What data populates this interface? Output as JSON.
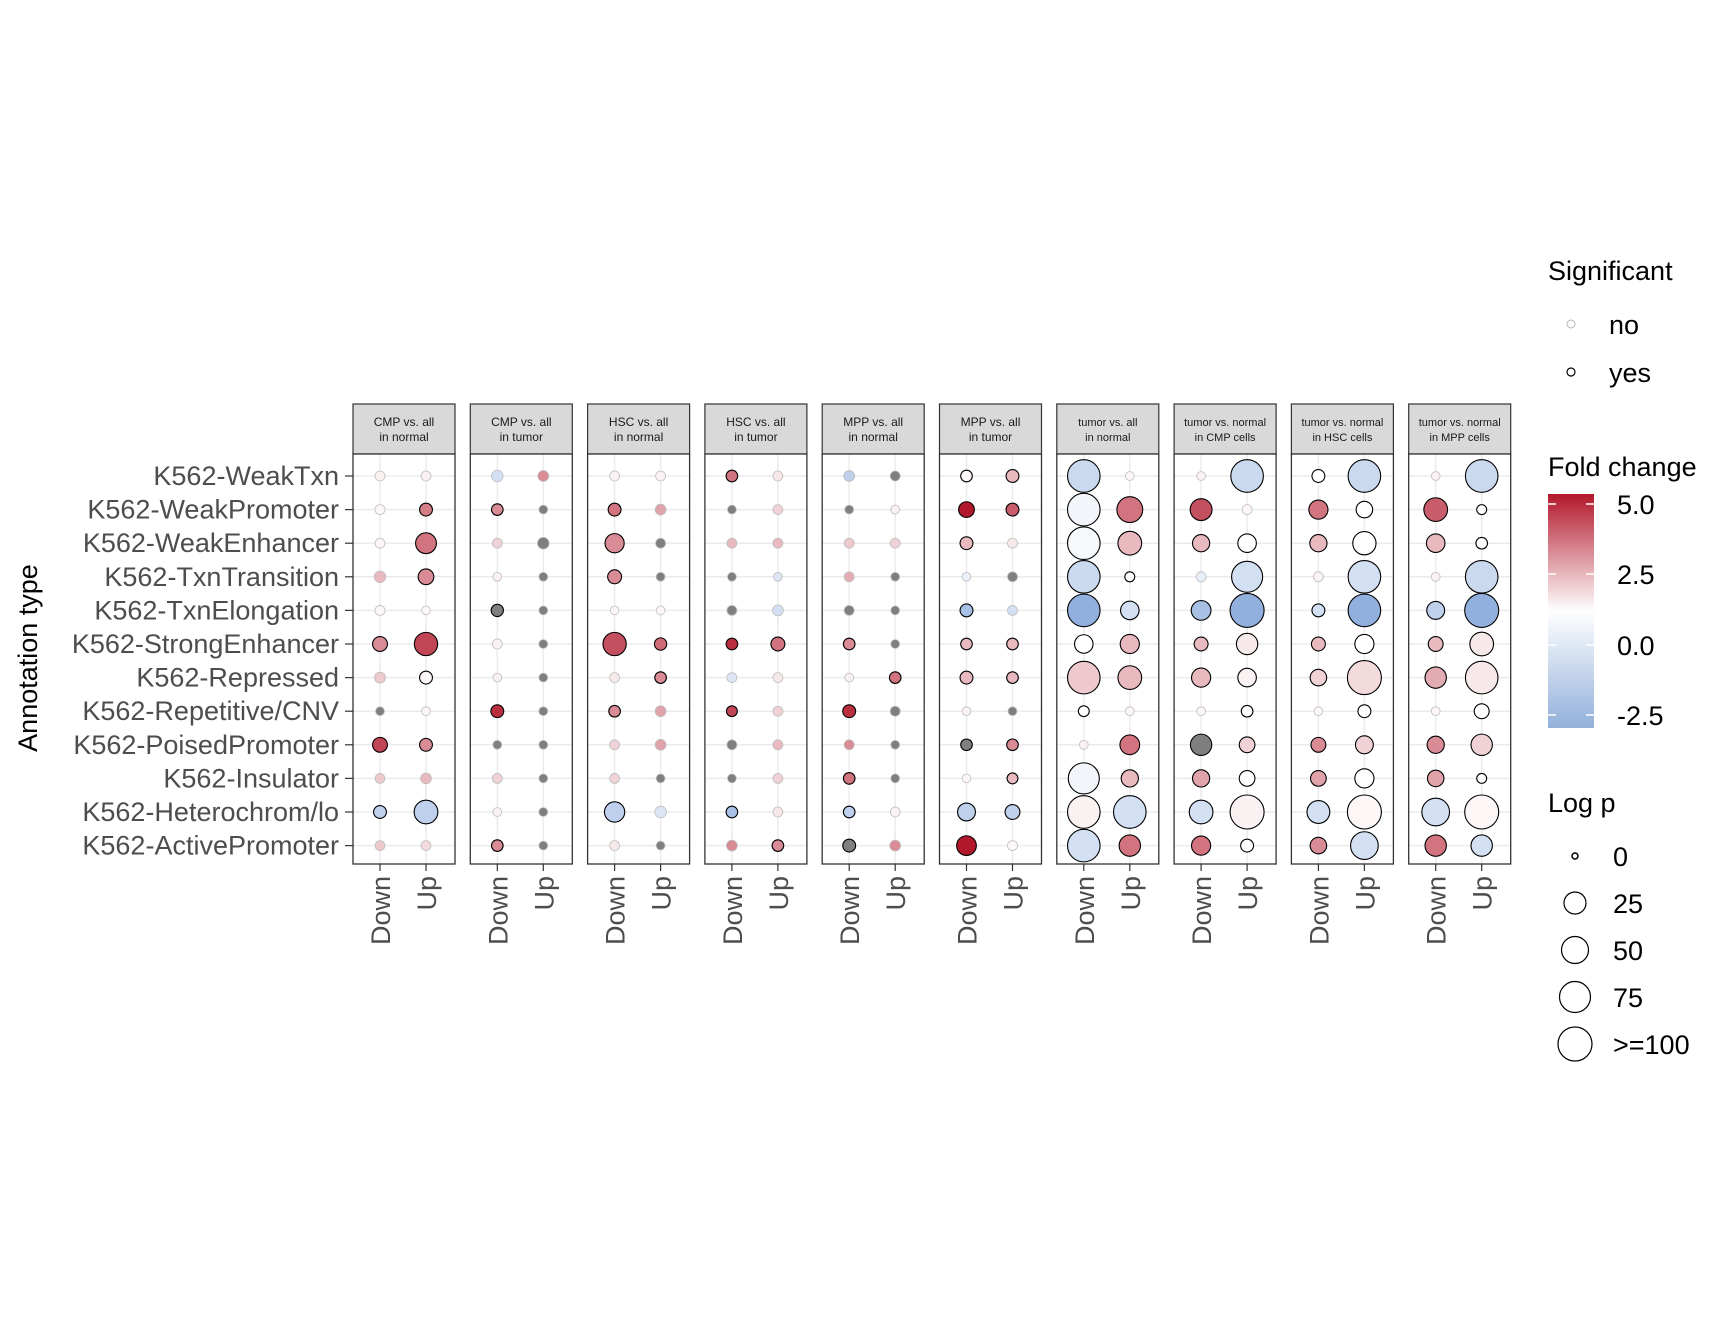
{
  "chart_data": {
    "type": "dot-matrix",
    "ylabel": "Annotation type",
    "rows": [
      "K562-WeakTxn",
      "K562-WeakPromoter",
      "K562-WeakEnhancer",
      "K562-TxnTransition",
      "K562-TxnElongation",
      "K562-StrongEnhancer",
      "K562-Repressed",
      "K562-Repetitive/CNV",
      "K562-PoisedPromoter",
      "K562-Insulator",
      "K562-Heterochrom/lo",
      "K562-ActivePromoter"
    ],
    "columns": [
      "Down",
      "Up"
    ],
    "panels": [
      {
        "title": [
          "CMP vs. all",
          "in normal"
        ],
        "title_size": 12,
        "down": {
          "fc": [
            0.3,
            0.2,
            0.2,
            1.5,
            0.2,
            2.5,
            1.2,
            "na",
            4,
            1.2,
            -1.5,
            1.2
          ],
          "logp": [
            2,
            2,
            2,
            4,
            2,
            10,
            3,
            1,
            10,
            2,
            6,
            2
          ],
          "sig": [
            0,
            0,
            0,
            0,
            0,
            1,
            0,
            0,
            1,
            0,
            1,
            0
          ]
        },
        "up": {
          "fc": [
            0.3,
            2.8,
            3,
            2.5,
            0.2,
            4,
            0.2,
            0.2,
            2.5,
            1.5,
            -1.5,
            0.8
          ],
          "logp": [
            2,
            6,
            28,
            12,
            1,
            38,
            6,
            1,
            6,
            3,
            40,
            2
          ],
          "sig": [
            0,
            1,
            1,
            1,
            0,
            1,
            1,
            0,
            1,
            0,
            1,
            0
          ]
        }
      },
      {
        "title": [
          "CMP vs. all",
          "in tumor"
        ],
        "title_size": 12,
        "down": {
          "fc": [
            -1,
            2.5,
            1,
            0.3,
            "na",
            0.3,
            0.3,
            4.5,
            "na",
            1,
            0.3,
            2.5
          ],
          "logp": [
            4,
            4,
            2,
            1,
            5,
            2,
            1,
            6,
            1,
            2,
            1,
            4
          ],
          "sig": [
            0,
            1,
            0,
            0,
            1,
            0,
            0,
            1,
            0,
            0,
            0,
            1
          ]
        },
        "up": {
          "fc": [
            2.5,
            "na",
            "na",
            "na",
            "na",
            "na",
            "na",
            "na",
            "na",
            "na",
            "na",
            "na"
          ],
          "logp": [
            3,
            1,
            4,
            1,
            1,
            1,
            1,
            1,
            1,
            1,
            1,
            1
          ],
          "sig": [
            0,
            0,
            0,
            0,
            0,
            0,
            0,
            0,
            0,
            0,
            0,
            0
          ]
        }
      },
      {
        "title": [
          "HSC vs. all",
          "in normal"
        ],
        "title_size": 12,
        "down": {
          "fc": [
            0.3,
            3,
            2.5,
            2.5,
            0.2,
            3.8,
            0.5,
            2.5,
            1,
            1,
            -1.5,
            0.5
          ],
          "logp": [
            2,
            6,
            22,
            8,
            1,
            38,
            2,
            4,
            2,
            2,
            26,
            2
          ],
          "sig": [
            0,
            1,
            1,
            1,
            0,
            1,
            0,
            1,
            0,
            0,
            1,
            0
          ]
        },
        "up": {
          "fc": [
            0.3,
            2,
            "na",
            "na",
            0.2,
            3.2,
            2.5,
            2,
            2,
            "na",
            -0.8,
            "na"
          ],
          "logp": [
            2,
            3,
            2,
            1,
            1,
            5,
            4,
            3,
            3,
            1,
            4,
            1
          ],
          "sig": [
            0,
            0,
            0,
            0,
            0,
            1,
            1,
            0,
            0,
            0,
            0,
            0
          ]
        }
      },
      {
        "title": [
          "HSC vs. all",
          "in tumor"
        ],
        "title_size": 12,
        "down": {
          "fc": [
            3,
            "na",
            1.5,
            "na",
            "na",
            4.5,
            -0.8,
            4,
            "na",
            "na",
            -2,
            2.5
          ],
          "logp": [
            4,
            1,
            2,
            1,
            2,
            4,
            2,
            3,
            2,
            1,
            4,
            3
          ],
          "sig": [
            1,
            0,
            0,
            0,
            0,
            1,
            0,
            1,
            0,
            0,
            1,
            0
          ]
        },
        "up": {
          "fc": [
            0.5,
            1,
            1.5,
            -0.8,
            -1,
            3,
            0.5,
            1,
            1.5,
            1,
            0.5,
            2.5
          ],
          "logp": [
            2,
            2,
            2,
            1,
            3,
            8,
            2,
            2,
            2,
            2,
            2,
            4
          ],
          "sig": [
            0,
            0,
            0,
            0,
            0,
            1,
            0,
            0,
            0,
            0,
            0,
            1
          ]
        }
      },
      {
        "title": [
          "MPP vs. all",
          "in normal"
        ],
        "title_size": 12,
        "down": {
          "fc": [
            -1.5,
            "na",
            1.2,
            1.8,
            "na",
            2.5,
            0.3,
            4.5,
            2.5,
            3,
            -1.5,
            "na"
          ],
          "logp": [
            3,
            1,
            2,
            2,
            2,
            4,
            1,
            6,
            2,
            4,
            4,
            6
          ],
          "sig": [
            0,
            0,
            0,
            0,
            0,
            1,
            0,
            1,
            0,
            1,
            1,
            1
          ]
        },
        "up": {
          "fc": [
            "na",
            0.3,
            1,
            "na",
            "na",
            "na",
            3,
            "na",
            "na",
            "na",
            0.3,
            2.5
          ],
          "logp": [
            2,
            1,
            2,
            1,
            1,
            1,
            4,
            2,
            1,
            1,
            2,
            3
          ],
          "sig": [
            0,
            0,
            0,
            0,
            0,
            0,
            1,
            0,
            0,
            0,
            0,
            0
          ]
        }
      },
      {
        "title": [
          "MPP vs. all",
          "in tumor"
        ],
        "title_size": 12,
        "down": {
          "fc": [
            0.2,
            5,
            1.5,
            -0.5,
            -2,
            1.5,
            1.5,
            0.3,
            "na",
            0.2,
            -1.5,
            5
          ],
          "logp": [
            4,
            12,
            6,
            1,
            6,
            4,
            6,
            1,
            4,
            1,
            18,
            24
          ],
          "sig": [
            1,
            1,
            1,
            0,
            1,
            1,
            1,
            0,
            1,
            0,
            1,
            1
          ]
        },
        "up": {
          "fc": [
            1.5,
            3.5,
            0.5,
            "na",
            -1,
            1.5,
            1.5,
            "na",
            2.5,
            1.5,
            -1.5,
            0.2
          ],
          "logp": [
            6,
            6,
            2,
            2,
            2,
            4,
            4,
            1,
            4,
            3,
            10,
            2
          ],
          "sig": [
            1,
            1,
            0,
            0,
            0,
            1,
            1,
            0,
            1,
            1,
            1,
            0
          ]
        }
      },
      {
        "title": [
          "tumor vs. all",
          "in normal"
        ],
        "title_size": 11,
        "down": {
          "fc": [
            -1.2,
            -0.3,
            -0.2,
            -1.2,
            -2.5,
            0,
            1.2,
            0,
            0.3,
            -0.3,
            0.3,
            -1
          ],
          "logp": [
            90,
            90,
            90,
            90,
            90,
            20,
            90,
            3,
            1,
            80,
            90,
            90
          ],
          "sig": [
            1,
            1,
            1,
            1,
            1,
            1,
            1,
            1,
            0,
            1,
            1,
            1
          ]
        },
        "up": {
          "fc": [
            0.2,
            3,
            1.5,
            0,
            -1,
            1.5,
            1.5,
            0.2,
            3,
            1.5,
            -1,
            3
          ],
          "logp": [
            1,
            50,
            40,
            2,
            20,
            22,
            40,
            1,
            24,
            16,
            90,
            30
          ],
          "sig": [
            0,
            1,
            1,
            1,
            1,
            1,
            1,
            0,
            1,
            1,
            1,
            1
          ]
        }
      },
      {
        "title": [
          "tumor vs. normal",
          "in CMP cells"
        ],
        "title_size": 11,
        "down": {
          "fc": [
            0.3,
            3.8,
            1.5,
            -0.5,
            -2,
            1.5,
            1.5,
            0.2,
            "na",
            2,
            -1,
            3
          ],
          "logp": [
            1,
            32,
            16,
            2,
            24,
            8,
            22,
            1,
            30,
            16,
            40,
            22
          ],
          "sig": [
            0,
            1,
            1,
            0,
            1,
            1,
            1,
            0,
            1,
            1,
            1,
            1
          ]
        },
        "up": {
          "fc": [
            -1.2,
            0.2,
            0,
            -1,
            -2.5,
            0.5,
            0.3,
            0,
            1,
            0,
            0.3,
            0
          ],
          "logp": [
            90,
            2,
            20,
            80,
            100,
            30,
            20,
            4,
            12,
            12,
            100,
            6
          ],
          "sig": [
            1,
            0,
            1,
            1,
            1,
            1,
            1,
            1,
            1,
            1,
            1,
            1
          ]
        }
      },
      {
        "title": [
          "tumor vs. normal",
          "in HSC cells"
        ],
        "title_size": 11,
        "down": {
          "fc": [
            0,
            3,
            1.5,
            0.3,
            -1,
            1.5,
            1,
            0.2,
            2.5,
            2,
            -1,
            2.5
          ],
          "logp": [
            6,
            22,
            16,
            2,
            6,
            8,
            14,
            1,
            10,
            12,
            36,
            14
          ],
          "sig": [
            1,
            1,
            1,
            0,
            1,
            1,
            1,
            0,
            1,
            1,
            1,
            1
          ]
        },
        "up": {
          "fc": [
            -1.2,
            0,
            0,
            -1,
            -2.5,
            0,
            0.8,
            0,
            1,
            0,
            0.2,
            -1
          ],
          "logp": [
            90,
            14,
            38,
            90,
            90,
            22,
            100,
            6,
            18,
            22,
            100,
            60
          ],
          "sig": [
            1,
            1,
            1,
            1,
            1,
            1,
            1,
            1,
            1,
            1,
            1,
            1
          ]
        }
      },
      {
        "title": [
          "tumor vs. normal",
          "in MPP cells"
        ],
        "title_size": 11,
        "down": {
          "fc": [
            0.3,
            3.5,
            1.5,
            0.3,
            -1.5,
            1.5,
            1.8,
            0.2,
            2.5,
            2,
            -1,
            3
          ],
          "logp": [
            1,
            40,
            20,
            1,
            18,
            10,
            30,
            1,
            16,
            14,
            60,
            30
          ],
          "sig": [
            0,
            1,
            1,
            0,
            1,
            1,
            1,
            0,
            1,
            1,
            1,
            1
          ]
        },
        "up": {
          "fc": [
            -1.2,
            0,
            0,
            -1.2,
            -2.5,
            0.5,
            0.5,
            0,
            1,
            0,
            0.2,
            -1
          ],
          "logp": [
            90,
            2,
            4,
            90,
            100,
            40,
            90,
            10,
            30,
            2,
            100,
            30
          ],
          "sig": [
            1,
            1,
            1,
            1,
            1,
            1,
            1,
            1,
            1,
            1,
            1,
            1
          ]
        }
      }
    ]
  },
  "legend": {
    "significant": {
      "title": "Significant",
      "items": [
        "no",
        "yes"
      ]
    },
    "fold_change": {
      "title": "Fold change",
      "ticks": [
        "5.0",
        "2.5",
        "0.0",
        "-2.5"
      ]
    },
    "log_p": {
      "title": "Log p",
      "items": [
        "0",
        "25",
        "50",
        "75",
        ">=100"
      ]
    }
  },
  "colors": {
    "high": "#b2182b",
    "mid": "#ffffff",
    "low": "#6f97d3",
    "na": "#7f7f7f",
    "strip": "#d9d9d9",
    "grid": "#ebebeb"
  }
}
